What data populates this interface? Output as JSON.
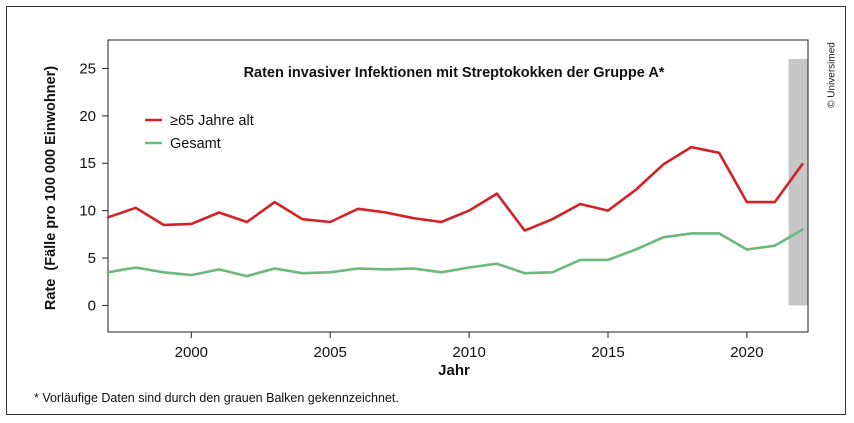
{
  "copyright": "© Universimed",
  "footnote": "* Vorläufige Daten sind durch den grauen Balken gekennzeichnet.",
  "colors": {
    "series_65": "#d42127",
    "series_total": "#6db87b",
    "provisional_band": "#c6c6c6"
  },
  "chart_data": {
    "type": "line",
    "title": "Raten invasiver Infektionen mit Streptokokken der Gruppe A*",
    "xlabel": "Jahr",
    "ylabel": "Rate  (Fälle pro 100 000 Einwohner)",
    "xlim": [
      1997,
      2022.2
    ],
    "ylim": [
      -2.8,
      28
    ],
    "yticks": [
      0,
      5,
      10,
      15,
      20,
      25
    ],
    "xticks": [
      2000,
      2005,
      2010,
      2015,
      2020
    ],
    "grid": false,
    "legend_position": "top-left",
    "provisional_range": [
      2021.5,
      2022.2
    ],
    "x": [
      1997,
      1998,
      1999,
      2000,
      2001,
      2002,
      2003,
      2004,
      2005,
      2006,
      2007,
      2008,
      2009,
      2010,
      2011,
      2012,
      2013,
      2014,
      2015,
      2016,
      2017,
      2018,
      2019,
      2020,
      2021,
      2022
    ],
    "series": [
      {
        "name": "≥65 Jahre alt",
        "values": [
          9.3,
          10.3,
          8.5,
          8.6,
          9.8,
          8.8,
          10.9,
          9.1,
          8.8,
          10.2,
          9.8,
          9.2,
          8.8,
          10.0,
          11.8,
          7.9,
          9.1,
          10.7,
          10.0,
          12.2,
          14.9,
          16.7,
          16.1,
          10.9,
          10.9,
          14.9
        ]
      },
      {
        "name": "Gesamt",
        "values": [
          3.5,
          4.0,
          3.5,
          3.2,
          3.8,
          3.1,
          3.9,
          3.4,
          3.5,
          3.9,
          3.8,
          3.9,
          3.5,
          4.0,
          4.4,
          3.4,
          3.5,
          4.8,
          4.8,
          5.9,
          7.2,
          7.6,
          7.6,
          5.9,
          6.3,
          8.0
        ]
      }
    ]
  }
}
